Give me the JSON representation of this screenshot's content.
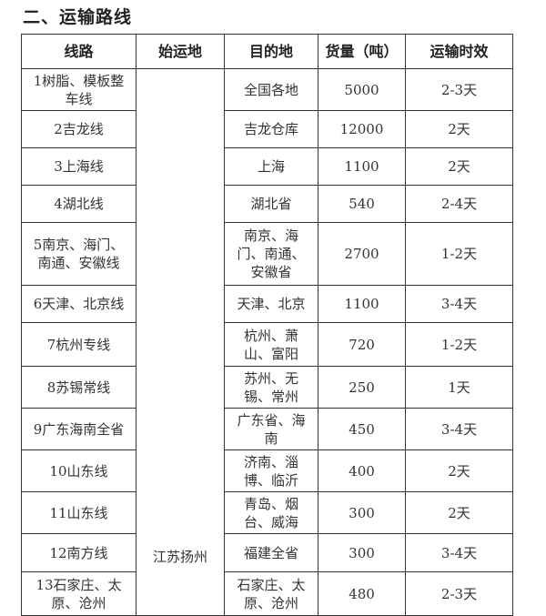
{
  "section_title": "二、运输路线",
  "table": {
    "headers": [
      "线路",
      "始运地",
      "目的地",
      "货量（吨）",
      "运输时效"
    ],
    "origin": "江苏扬州",
    "rows": [
      {
        "route": "1树脂、模板整车线",
        "destination": "全国各地",
        "volume": "5000",
        "time": "2-3天"
      },
      {
        "route": "2吉龙线",
        "destination": "吉龙仓库",
        "volume": "12000",
        "time": "2天"
      },
      {
        "route": "3上海线",
        "destination": "上海",
        "volume": "1100",
        "time": "2天"
      },
      {
        "route": "4湖北线",
        "destination": "湖北省",
        "volume": "540",
        "time": "2-4天"
      },
      {
        "route": "5南京、海门、南通、安徽线",
        "destination": "南京、海门、南通、安徽省",
        "volume": "2700",
        "time": "1-2天"
      },
      {
        "route": "6天津、北京线",
        "destination": "天津、北京",
        "volume": "1100",
        "time": "3-4天"
      },
      {
        "route": "7杭州专线",
        "destination": "杭州、萧山、富阳",
        "volume": "720",
        "time": "1-2天"
      },
      {
        "route": "8苏锡常线",
        "destination": "苏州、无锡、常州",
        "volume": "250",
        "time": "1天"
      },
      {
        "route": "9广东海南全省",
        "destination": "广东省、海南",
        "volume": "450",
        "time": "3-4天"
      },
      {
        "route": "10山东线",
        "destination": "济南、淄博、临沂",
        "volume": "400",
        "time": "2天"
      },
      {
        "route": "11山东线",
        "destination": "青岛、烟台、威海",
        "volume": "300",
        "time": "2天"
      },
      {
        "route": "12南方线",
        "destination": "福建全省",
        "volume": "300",
        "time": "3-4天"
      },
      {
        "route": "13石家庄、太原、沧州",
        "destination": "石家庄、太原、沧州",
        "volume": "480",
        "time": "2-3天"
      }
    ]
  }
}
